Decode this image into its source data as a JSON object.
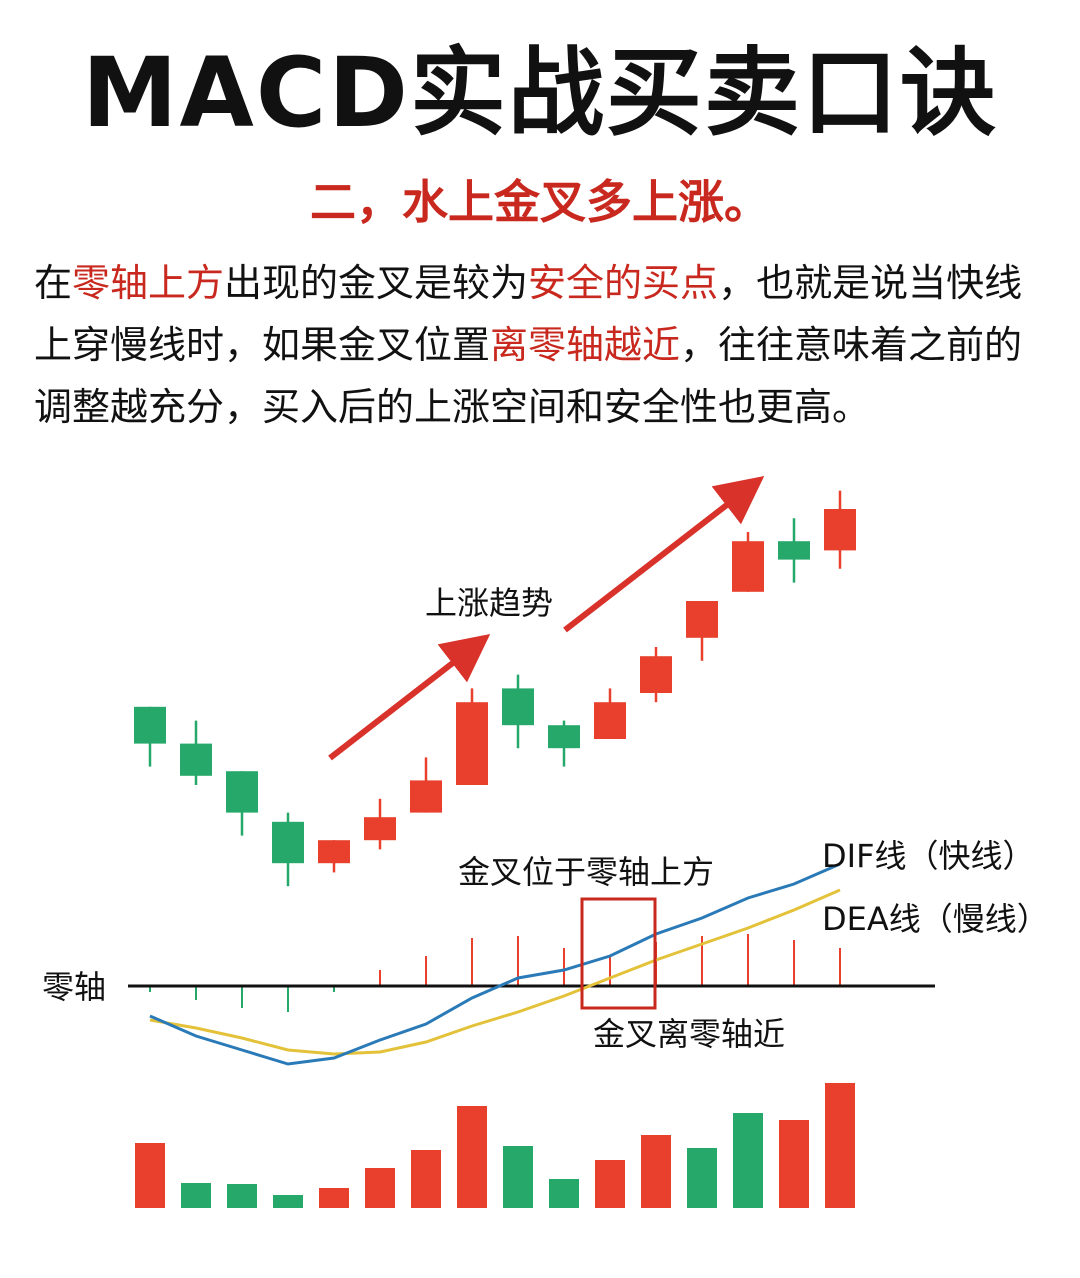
{
  "title": "MACD实战买卖口诀",
  "subtitle": "二，水上金叉多上涨。",
  "paragraph": [
    {
      "text": "在",
      "hl": false
    },
    {
      "text": "零轴上方",
      "hl": true
    },
    {
      "text": "出现的金叉是较为",
      "hl": false
    },
    {
      "text": "安全的买点",
      "hl": true
    },
    {
      "text": "，也就是说当快线上穿慢线时，如果金叉位置",
      "hl": false
    },
    {
      "text": "离零轴越近",
      "hl": true
    },
    {
      "text": "，往往意味着之前的调整越充分，买入后的上涨空间和安全性也更高。",
      "hl": false
    }
  ],
  "colors": {
    "up": "#e8402c",
    "down": "#27a86b",
    "dif": "#2a7ab8",
    "dea": "#e3c23a",
    "accent": "#c8281e",
    "zero_axis": "#111111"
  },
  "chart_data": [
    {
      "type": "candlestick",
      "candles": [
        {
          "open": 6.2,
          "close": 5.4,
          "high": 6.2,
          "low": 4.9,
          "dir": "down"
        },
        {
          "open": 5.4,
          "close": 4.7,
          "high": 5.9,
          "low": 4.5,
          "dir": "down"
        },
        {
          "open": 4.8,
          "close": 3.9,
          "high": 4.8,
          "low": 3.4,
          "dir": "down"
        },
        {
          "open": 3.7,
          "close": 2.8,
          "high": 3.9,
          "low": 2.3,
          "dir": "down"
        },
        {
          "open": 2.8,
          "close": 3.3,
          "high": 3.3,
          "low": 2.6,
          "dir": "up"
        },
        {
          "open": 3.3,
          "close": 3.8,
          "high": 4.2,
          "low": 3.1,
          "dir": "up"
        },
        {
          "open": 3.9,
          "close": 4.6,
          "high": 5.1,
          "low": 3.9,
          "dir": "up"
        },
        {
          "open": 4.5,
          "close": 6.3,
          "high": 6.6,
          "low": 4.5,
          "dir": "up"
        },
        {
          "open": 6.6,
          "close": 5.8,
          "high": 6.9,
          "low": 5.3,
          "dir": "down"
        },
        {
          "open": 5.8,
          "close": 5.3,
          "high": 5.9,
          "low": 4.9,
          "dir": "down"
        },
        {
          "open": 5.5,
          "close": 6.3,
          "high": 6.6,
          "low": 5.5,
          "dir": "up"
        },
        {
          "open": 6.5,
          "close": 7.3,
          "high": 7.5,
          "low": 6.3,
          "dir": "up"
        },
        {
          "open": 7.7,
          "close": 8.5,
          "high": 8.5,
          "low": 7.2,
          "dir": "up"
        },
        {
          "open": 8.7,
          "close": 9.8,
          "high": 10.0,
          "low": 8.7,
          "dir": "up"
        },
        {
          "open": 9.8,
          "close": 9.4,
          "high": 10.3,
          "low": 8.9,
          "dir": "down"
        },
        {
          "open": 9.6,
          "close": 10.5,
          "high": 10.9,
          "low": 9.2,
          "dir": "up"
        }
      ],
      "annotation": "上涨趋势"
    },
    {
      "type": "line",
      "zero_label": "零轴",
      "series": [
        {
          "name": "DIF线（快线）",
          "values": [
            -1.5,
            -2.5,
            -3.2,
            -3.9,
            -3.6,
            -2.7,
            -1.9,
            -0.6,
            0.4,
            0.8,
            1.5,
            2.6,
            3.4,
            4.4,
            5.1,
            6.1
          ]
        },
        {
          "name": "DEA线（慢线）",
          "values": [
            -1.7,
            -2.1,
            -2.6,
            -3.2,
            -3.4,
            -3.3,
            -2.8,
            -2.0,
            -1.3,
            -0.5,
            0.4,
            1.3,
            2.1,
            2.9,
            3.8,
            4.8
          ]
        }
      ],
      "macd_bars": [
        -0.3,
        -0.7,
        -1.1,
        -1.3,
        -0.3,
        0.8,
        1.5,
        2.4,
        2.5,
        1.9,
        1.5,
        2.2,
        2.5,
        2.6,
        2.3,
        1.9
      ],
      "ylim": [
        -5,
        8
      ],
      "annotations": [
        "金叉位于零轴上方",
        "金叉离零轴近"
      ]
    },
    {
      "type": "bar",
      "values": [
        6.5,
        2.5,
        2.4,
        1.3,
        2.0,
        4.0,
        5.8,
        10.2,
        6.2,
        2.9,
        4.8,
        7.3,
        6.0,
        9.5,
        8.8,
        12.5
      ],
      "dir": [
        "up",
        "down",
        "down",
        "down",
        "up",
        "up",
        "up",
        "up",
        "down",
        "down",
        "up",
        "up",
        "down",
        "down",
        "up",
        "up"
      ]
    }
  ]
}
